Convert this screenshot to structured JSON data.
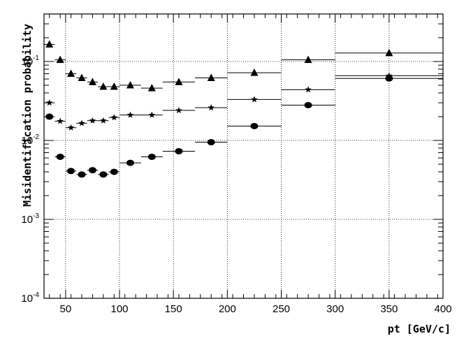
{
  "chart_data": {
    "type": "scatter",
    "title": "",
    "xlabel": "pt [GeV/c]",
    "ylabel": "Misidentification probability",
    "xlim": [
      30,
      400
    ],
    "ylim": [
      0.0001,
      0.4
    ],
    "y_scale": "log",
    "grid": true,
    "x_ticks": [
      {
        "value": 50,
        "label": "50"
      },
      {
        "value": 100,
        "label": "100"
      },
      {
        "value": 150,
        "label": "150"
      },
      {
        "value": 200,
        "label": "200"
      },
      {
        "value": 250,
        "label": "250"
      },
      {
        "value": 300,
        "label": "300"
      },
      {
        "value": 350,
        "label": "350"
      },
      {
        "value": 400,
        "label": "400"
      }
    ],
    "y_ticks": [
      {
        "value": 0.0001,
        "base": "10",
        "exp": "-4"
      },
      {
        "value": 0.001,
        "base": "10",
        "exp": "-3"
      },
      {
        "value": 0.01,
        "base": "10",
        "exp": "-2"
      },
      {
        "value": 0.1,
        "base": "10",
        "exp": "-1"
      }
    ],
    "series": [
      {
        "marker": "triangle",
        "x": [
          35,
          45,
          55,
          65,
          75,
          85,
          95,
          110,
          130,
          155,
          185,
          225,
          275,
          350
        ],
        "xerr": [
          5,
          5,
          5,
          5,
          5,
          5,
          5,
          10,
          10,
          15,
          15,
          25,
          25,
          50
        ],
        "y": [
          0.165,
          0.105,
          0.07,
          0.062,
          0.055,
          0.048,
          0.048,
          0.05,
          0.046,
          0.055,
          0.062,
          0.072,
          0.105,
          0.128
        ]
      },
      {
        "marker": "star",
        "x": [
          35,
          45,
          55,
          65,
          75,
          85,
          95,
          110,
          130,
          155,
          185,
          225,
          275,
          350
        ],
        "xerr": [
          5,
          5,
          5,
          5,
          5,
          5,
          5,
          10,
          10,
          15,
          15,
          25,
          25,
          50
        ],
        "y": [
          0.03,
          0.0175,
          0.0145,
          0.0165,
          0.0178,
          0.0178,
          0.0195,
          0.021,
          0.021,
          0.024,
          0.026,
          0.033,
          0.044,
          0.066
        ]
      },
      {
        "marker": "circle",
        "x": [
          35,
          45,
          55,
          65,
          75,
          85,
          95,
          110,
          130,
          155,
          185,
          225,
          275,
          350
        ],
        "xerr": [
          5,
          5,
          5,
          5,
          5,
          5,
          5,
          10,
          10,
          15,
          15,
          25,
          25,
          50
        ],
        "y": [
          0.02,
          0.0062,
          0.0041,
          0.0037,
          0.0042,
          0.0037,
          0.004,
          0.0052,
          0.0062,
          0.0073,
          0.0095,
          0.0152,
          0.028,
          0.061
        ]
      }
    ]
  }
}
